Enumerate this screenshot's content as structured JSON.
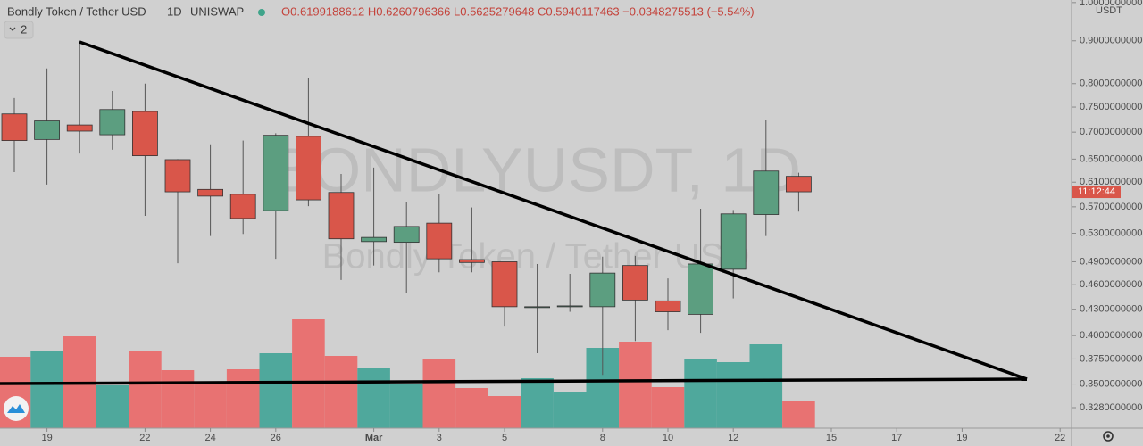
{
  "chart_data": {
    "type": "candlestick",
    "title": "Bondly Token / Tether USD",
    "interval": "1D",
    "exchange": "UNISWAP",
    "legend_text": "O0.6199188612 H0.6260796366 L0.5625279648 C0.5940117463 −0.0348275513 (−5.54%)",
    "indicator_count": 2,
    "currency": "USDT",
    "watermark_symbol": "BONDLYUSDT, 1D",
    "watermark_name": "Bondly Token / Tether USD",
    "countdown": "11:12:44",
    "log_scale": true,
    "grid": false,
    "up_color": "#5c9e80",
    "down_color": "#d9564a",
    "volume_up_color": "#4fa89c",
    "volume_down_color": "#e87272",
    "categories": [
      null,
      "19",
      null,
      null,
      "22",
      null,
      "24",
      null,
      "26",
      null,
      null,
      "Mar",
      null,
      "3",
      null,
      "5",
      null,
      null,
      "8",
      null,
      "10",
      null,
      "12",
      null,
      null,
      "15",
      null,
      "17",
      null,
      "19",
      null,
      null,
      "22"
    ],
    "open": [
      0.736,
      0.686,
      0.714,
      0.695,
      0.741,
      0.649,
      0.598,
      0.59,
      0.564,
      0.692,
      0.593,
      0.518,
      0.517,
      0.545,
      0.493,
      0.49,
      0.433,
      0.433,
      0.433,
      0.485,
      0.44,
      0.424,
      0.48,
      0.558,
      0.6199188612,
      null,
      null,
      null,
      null,
      null,
      null,
      null,
      null
    ],
    "high": [
      0.769,
      0.834,
      0.898,
      0.784,
      0.8,
      0.65,
      0.677,
      0.684,
      0.698,
      0.812,
      0.624,
      0.635,
      0.577,
      0.59,
      0.569,
      0.49,
      0.487,
      0.474,
      0.497,
      0.498,
      0.468,
      0.567,
      0.565,
      0.723,
      0.6260796366,
      null,
      null,
      null,
      null,
      null,
      null,
      null,
      null
    ],
    "low": [
      0.627,
      0.606,
      0.66,
      0.667,
      0.556,
      0.488,
      0.526,
      0.529,
      0.494,
      0.571,
      0.466,
      0.485,
      0.45,
      0.476,
      0.476,
      0.41,
      0.381,
      0.427,
      0.359,
      0.394,
      0.406,
      0.403,
      0.443,
      0.526,
      0.5625279648,
      null,
      null,
      null,
      null,
      null,
      null,
      null,
      null
    ],
    "close": [
      0.684,
      0.722,
      0.702,
      0.745,
      0.656,
      0.594,
      0.587,
      0.552,
      0.694,
      0.581,
      0.522,
      0.524,
      0.54,
      0.494,
      0.489,
      0.433,
      0.433,
      0.434,
      0.475,
      0.441,
      0.427,
      0.487,
      0.559,
      0.629,
      0.5940117463,
      null,
      null,
      null,
      null,
      null,
      null,
      null,
      null
    ],
    "volume": [
      80,
      87,
      103,
      48,
      87,
      65,
      50,
      66,
      84,
      122,
      81,
      67,
      50,
      77,
      45,
      36,
      56,
      41,
      90,
      97,
      46,
      77,
      74,
      94,
      31,
      null,
      null,
      null,
      null,
      null,
      null,
      null,
      null
    ],
    "ylim": [
      0.31,
      1.007
    ],
    "yticks": [
      {
        "value": 1.0,
        "label": "1.0000000000"
      },
      {
        "value": 0.9,
        "label": "0.9000000000"
      },
      {
        "value": 0.8,
        "label": "0.8000000000"
      },
      {
        "value": 0.75,
        "label": "0.7500000000"
      },
      {
        "value": 0.7,
        "label": "0.7000000000"
      },
      {
        "value": 0.65,
        "label": "0.6500000000"
      },
      {
        "value": 0.61,
        "label": "0.6100000000"
      },
      {
        "value": 0.57,
        "label": "0.5700000000"
      },
      {
        "value": 0.53,
        "label": "0.5300000000"
      },
      {
        "value": 0.49,
        "label": "0.4900000000"
      },
      {
        "value": 0.46,
        "label": "0.4600000000"
      },
      {
        "value": 0.43,
        "label": "0.4300000000"
      },
      {
        "value": 0.4,
        "label": "0.4000000000"
      },
      {
        "value": 0.375,
        "label": "0.3750000000"
      },
      {
        "value": 0.35,
        "label": "0.3500000000"
      },
      {
        "value": 0.328,
        "label": "0.3280000000"
      }
    ]
  }
}
